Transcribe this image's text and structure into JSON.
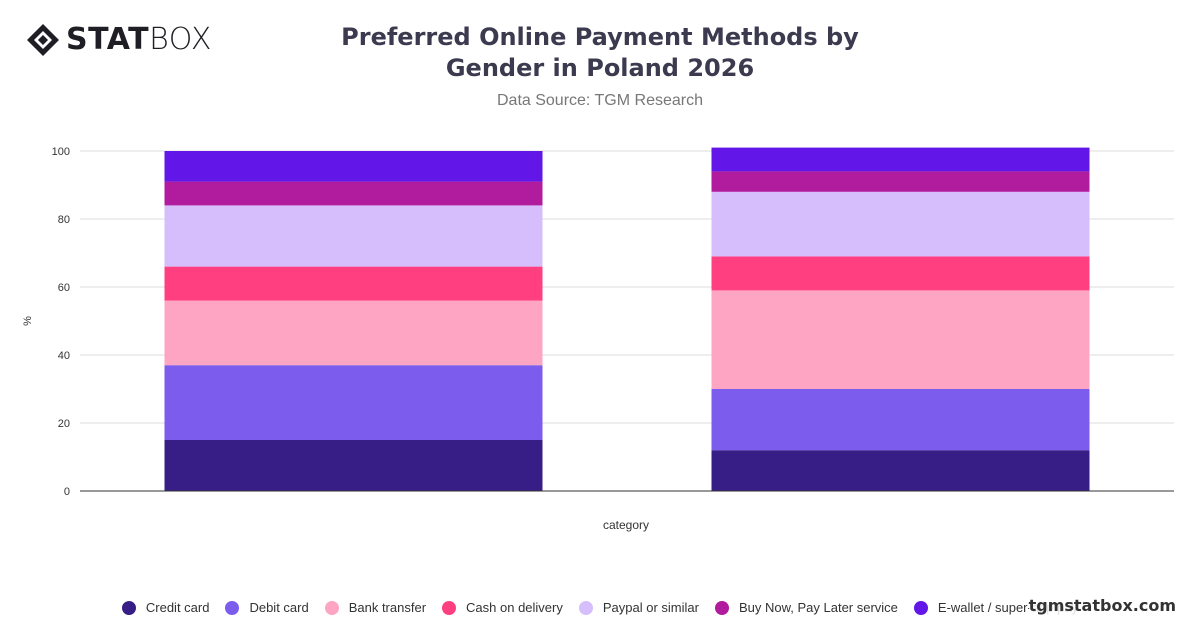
{
  "brand": {
    "logo_bold": "STAT",
    "logo_light": "BOX",
    "watermark": "tgmstatbox.com"
  },
  "header": {
    "title": "Preferred Online Payment Methods by Gender in Poland 2026",
    "subtitle": "Data Source: TGM Research"
  },
  "chart_data": {
    "type": "bar",
    "stacked": true,
    "title": "Preferred Online Payment Methods by Gender in Poland 2026",
    "subtitle": "Data Source: TGM Research",
    "xlabel": "category",
    "ylabel": "%",
    "ylim": [
      0,
      100
    ],
    "yticks": [
      0,
      20,
      40,
      60,
      80,
      100
    ],
    "grid": true,
    "legend_position": "bottom",
    "categories": [
      "",
      ""
    ],
    "series": [
      {
        "name": "Credit card",
        "color": "#371e86",
        "values": [
          15,
          12
        ]
      },
      {
        "name": "Debit card",
        "color": "#7b5cec",
        "values": [
          22,
          18
        ]
      },
      {
        "name": "Bank transfer",
        "color": "#fda5c2",
        "values": [
          19,
          29
        ]
      },
      {
        "name": "Cash on delivery",
        "color": "#ff3f7f",
        "values": [
          10,
          10
        ]
      },
      {
        "name": "Paypal or similar",
        "color": "#d6befd",
        "values": [
          18,
          19
        ]
      },
      {
        "name": "Buy Now, Pay Later service",
        "color": "#b01c9d",
        "values": [
          7,
          6
        ]
      },
      {
        "name": "E-wallet / super-app pay",
        "color": "#6216e8",
        "values": [
          9,
          7
        ]
      }
    ]
  }
}
